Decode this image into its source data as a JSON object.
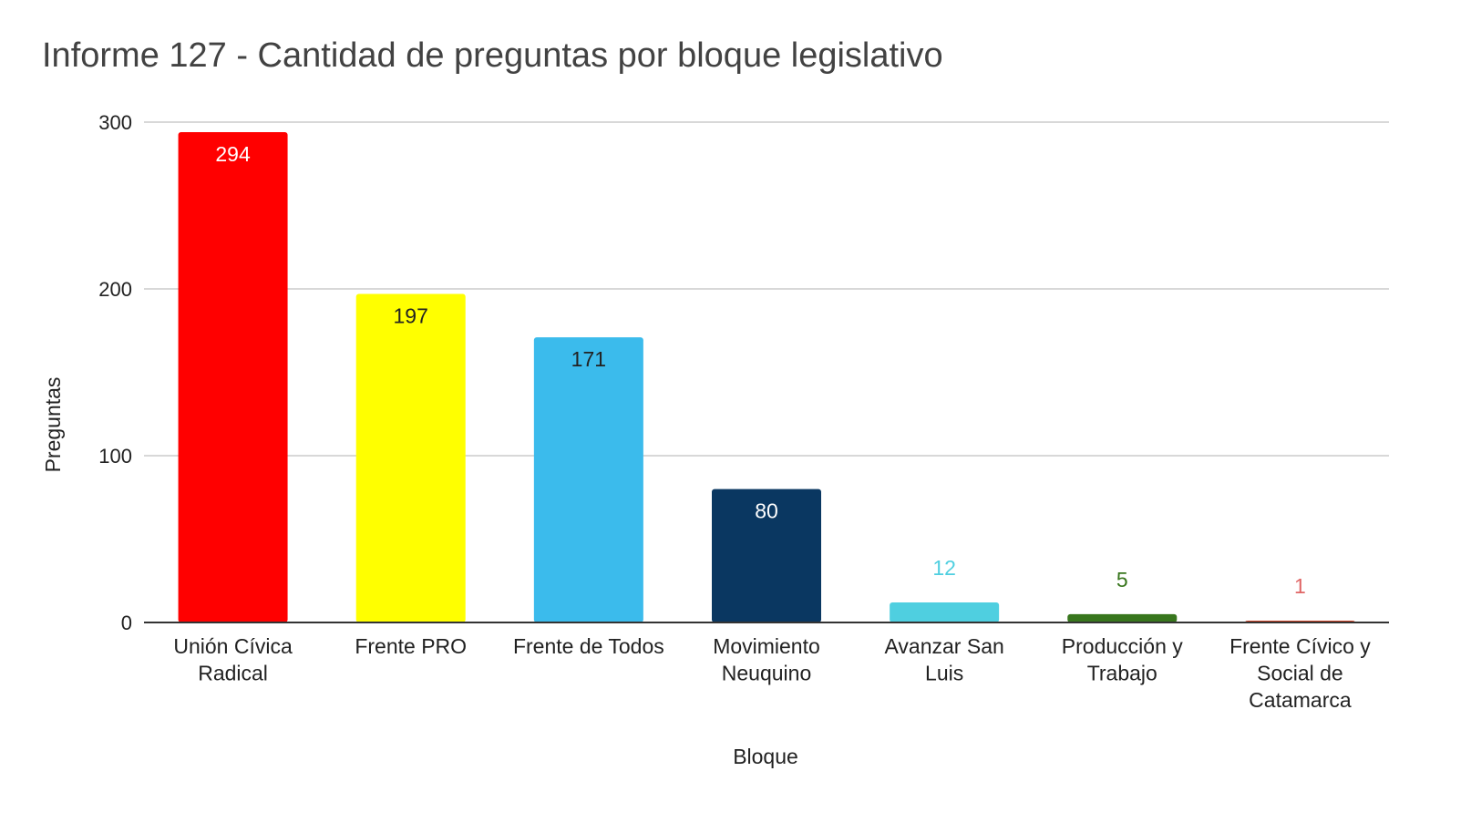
{
  "chart_data": {
    "type": "bar",
    "title": "Informe 127 - Cantidad de preguntas por bloque legislativo",
    "xlabel": "Bloque",
    "ylabel": "Preguntas",
    "ylim": [
      0,
      300
    ],
    "yticks": [
      0,
      100,
      200,
      300
    ],
    "grid": true,
    "categories": [
      [
        "Unión Cívica",
        "Radical"
      ],
      [
        "Frente PRO"
      ],
      [
        "Frente de Todos"
      ],
      [
        "Movimiento",
        "Neuquino"
      ],
      [
        "Avanzar San",
        "Luis"
      ],
      [
        "Producción y",
        "Trabajo"
      ],
      [
        "Frente Cívico y",
        "Social de",
        "Catamarca"
      ]
    ],
    "values": [
      294,
      197,
      171,
      80,
      12,
      5,
      1
    ],
    "colors": [
      "#ff0000",
      "#ffff00",
      "#3bbbec",
      "#0a3761",
      "#4fcfe0",
      "#38761d",
      "#cc4125"
    ],
    "label_colors": [
      "#ffffff",
      "#222222",
      "#222222",
      "#ffffff",
      "#4fcfe0",
      "#38761d",
      "#e06666"
    ]
  }
}
